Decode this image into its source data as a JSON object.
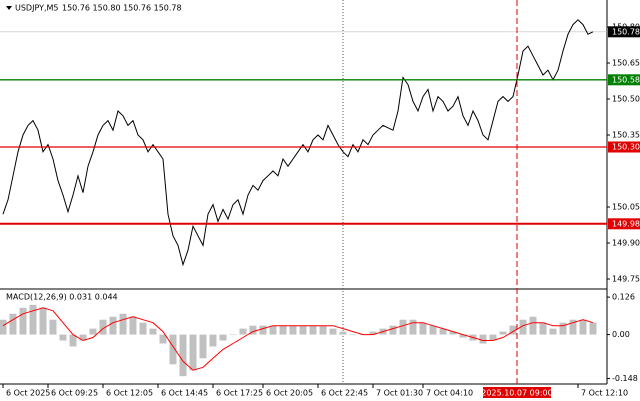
{
  "chart_data": [
    {
      "type": "line",
      "title": "USDJPY,M5",
      "subtitle": "150.76 150.80 150.76 150.78",
      "color": "#000000",
      "values": [
        150.02,
        150.08,
        150.18,
        150.28,
        150.35,
        150.39,
        150.41,
        150.37,
        150.28,
        150.31,
        150.25,
        150.16,
        150.1,
        150.03,
        150.1,
        150.18,
        150.11,
        150.22,
        150.28,
        150.35,
        150.39,
        150.41,
        150.37,
        150.45,
        150.43,
        150.39,
        150.41,
        150.35,
        150.33,
        150.28,
        150.31,
        150.28,
        150.25,
        150.02,
        149.93,
        149.89,
        149.81,
        149.87,
        149.97,
        149.93,
        149.89,
        150.02,
        150.06,
        149.99,
        150.04,
        150.0,
        150.06,
        150.08,
        150.02,
        150.1,
        150.14,
        150.12,
        150.16,
        150.18,
        150.2,
        150.18,
        150.25,
        150.22,
        150.25,
        150.28,
        150.31,
        150.28,
        150.33,
        150.35,
        150.33,
        150.39,
        150.35,
        150.31,
        150.28,
        150.26,
        150.31,
        150.28,
        150.33,
        150.31,
        150.35,
        150.37,
        150.39,
        150.38,
        150.37,
        150.45,
        150.59,
        150.56,
        150.49,
        150.45,
        150.51,
        150.54,
        150.45,
        150.51,
        150.49,
        150.45,
        150.47,
        150.51,
        150.43,
        150.39,
        150.45,
        150.41,
        150.35,
        150.33,
        150.41,
        150.49,
        150.51,
        150.49,
        150.51,
        150.6,
        150.7,
        150.72,
        150.68,
        150.64,
        150.6,
        150.62,
        150.58,
        150.62,
        150.7,
        150.77,
        150.81,
        150.83,
        150.81,
        150.77,
        150.78
      ],
      "xlim": [
        -0.6,
        120.8
      ],
      "xticks": [
        {
          "value": 0,
          "label": "6 Oct 2025"
        },
        {
          "value": 9,
          "label": "6 Oct 09:25"
        },
        {
          "value": 20,
          "label": "6 Oct 12:05"
        },
        {
          "value": 31,
          "label": "6 Oct 14:45"
        },
        {
          "value": 42,
          "label": "6 Oct 17:25"
        },
        {
          "value": 52,
          "label": "6 Oct 20:05"
        },
        {
          "value": 63,
          "label": "6 Oct 22:45"
        },
        {
          "value": 74,
          "label": "7 Oct 01:30"
        },
        {
          "value": 84,
          "label": "7 Oct 04:10"
        },
        {
          "value": 115,
          "label": "7 Oct 12:10"
        }
      ],
      "ylim": [
        149.7125,
        150.9125
      ],
      "yticks": [
        {
          "value": 150.8,
          "label": "150.80"
        },
        {
          "value": 150.65,
          "label": "150.65"
        },
        {
          "value": 150.5,
          "label": "150.50"
        },
        {
          "value": 150.35,
          "label": "150.35"
        },
        {
          "value": 150.05,
          "label": "150.05"
        },
        {
          "value": 149.9,
          "label": "149.90"
        },
        {
          "value": 149.75,
          "label": "149.75"
        }
      ],
      "levels": [
        {
          "value": 150.58,
          "label": "150.58",
          "color": "#008000"
        },
        {
          "value": 150.3,
          "label": "150.30",
          "color": "#e00000"
        },
        {
          "value": 149.98,
          "label": "149.98",
          "color": "#e00000"
        }
      ],
      "last_price": {
        "value": 150.78,
        "label": "150.78"
      },
      "separators": [
        68
      ],
      "crosshair": {
        "value": 102.8,
        "label": "2025.10.07 09:00",
        "color": "#e00000"
      }
    },
    {
      "type": "macd",
      "title": "MACD(12,26,9) 0.031 0.044",
      "xlim": [
        -0.3,
        60.4
      ],
      "ylim": [
        -0.163,
        0.15
      ],
      "yticks": [
        0.126,
        {
          "value": 0,
          "label": "0.00"
        },
        -0.148
      ],
      "histogram": {
        "color": "#c0c0c0",
        "values": [
          0.05,
          0.07,
          0.09,
          0.1,
          0.09,
          0.05,
          -0.02,
          -0.04,
          -0.02,
          0.02,
          0.05,
          0.06,
          0.07,
          0.06,
          0.04,
          0.02,
          -0.03,
          -0.1,
          -0.14,
          -0.12,
          -0.08,
          -0.04,
          -0.02,
          0.0,
          0.02,
          0.03,
          0.03,
          0.03,
          0.03,
          0.03,
          0.03,
          0.03,
          0.03,
          0.02,
          0.01,
          0.0,
          0.0,
          0.01,
          0.02,
          0.03,
          0.05,
          0.05,
          0.04,
          0.03,
          0.02,
          0.01,
          -0.01,
          -0.02,
          -0.03,
          -0.02,
          0.01,
          0.03,
          0.05,
          0.06,
          0.04,
          0.02,
          0.04,
          0.05,
          0.05,
          0.04
        ]
      },
      "signal": {
        "color": "#ff0000",
        "values": [
          0.03,
          0.05,
          0.07,
          0.08,
          0.09,
          0.08,
          0.04,
          0.0,
          -0.02,
          -0.01,
          0.02,
          0.04,
          0.05,
          0.06,
          0.05,
          0.04,
          0.01,
          -0.04,
          -0.09,
          -0.12,
          -0.11,
          -0.08,
          -0.05,
          -0.03,
          -0.01,
          0.01,
          0.02,
          0.03,
          0.03,
          0.03,
          0.03,
          0.03,
          0.03,
          0.03,
          0.02,
          0.01,
          0.0,
          0.0,
          0.01,
          0.02,
          0.03,
          0.04,
          0.04,
          0.03,
          0.02,
          0.01,
          0.0,
          -0.01,
          -0.02,
          -0.02,
          -0.01,
          0.01,
          0.03,
          0.04,
          0.04,
          0.03,
          0.03,
          0.04,
          0.05,
          0.04
        ]
      }
    }
  ]
}
